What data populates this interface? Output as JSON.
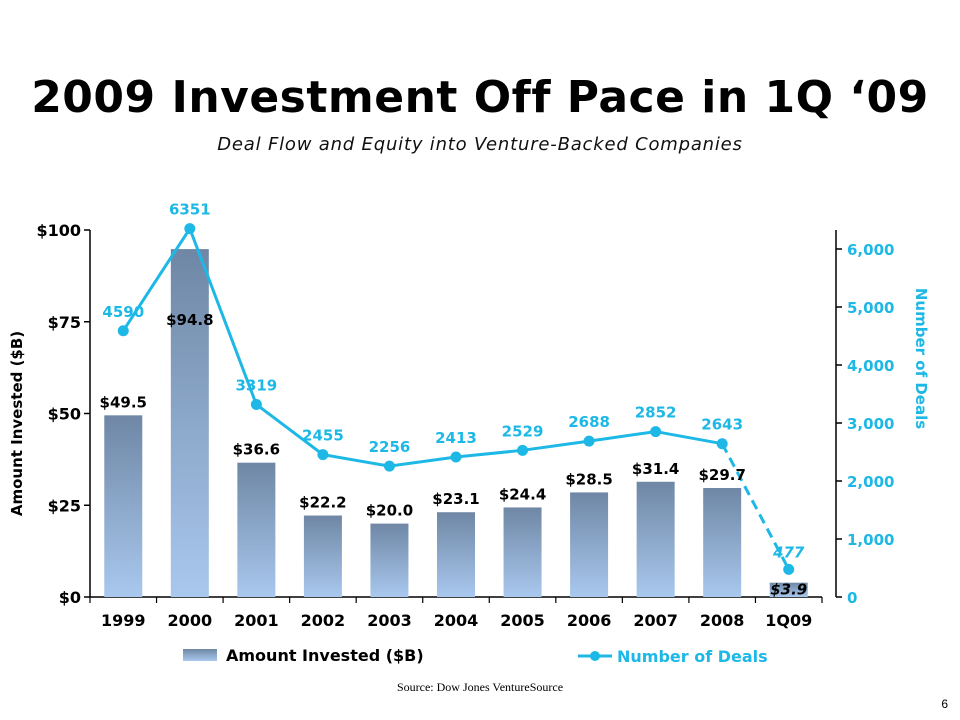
{
  "title": "2009 Investment Off Pace in 1Q ‘09",
  "subtitle": "Deal Flow and Equity into Venture-Backed Companies",
  "source": "Source: Dow Jones VentureSource",
  "page_number": "6",
  "colors": {
    "bar_top": "#6f87a5",
    "bar_bottom": "#a9c8ee",
    "line": "#1eb8e6",
    "text": "#000000"
  },
  "chart_data": {
    "type": "bar",
    "categories": [
      "1999",
      "2000",
      "2001",
      "2002",
      "2003",
      "2004",
      "2005",
      "2006",
      "2007",
      "2008",
      "1Q09"
    ],
    "series": [
      {
        "name": "Amount Invested ($B)",
        "type": "bar",
        "axis": "left",
        "values": [
          49.5,
          94.8,
          36.6,
          22.2,
          20.0,
          23.1,
          24.4,
          28.5,
          31.4,
          29.7,
          3.9
        ],
        "labels": [
          "$49.5",
          "$94.8",
          "$36.6",
          "$22.2",
          "$20.0",
          "$23.1",
          "$24.4",
          "$28.5",
          "$31.4",
          "$29.7",
          "$3.9"
        ]
      },
      {
        "name": "Number of Deals",
        "type": "line",
        "axis": "right",
        "values": [
          4590,
          6351,
          3319,
          2455,
          2256,
          2413,
          2529,
          2688,
          2852,
          2643,
          477
        ],
        "labels": [
          "4590",
          "6351",
          "3319",
          "2455",
          "2256",
          "2413",
          "2529",
          "2688",
          "2852",
          "2643",
          "477"
        ]
      }
    ],
    "ylabel": "Amount Invested ($B)",
    "y2label": "Number of Deals",
    "ylim": [
      0,
      100
    ],
    "y2lim": [
      0,
      6500
    ],
    "yticks": [
      "$0",
      "$25",
      "$50",
      "$75",
      "$100"
    ],
    "y2ticks": [
      "0",
      "1,000",
      "2,000",
      "3,000",
      "4,000",
      "5,000",
      "6,000"
    ],
    "legend": [
      "Amount Invested ($B)",
      "Number of Deals"
    ],
    "legend_position": "bottom",
    "grid": false
  }
}
